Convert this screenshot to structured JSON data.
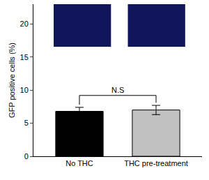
{
  "chart_data": {
    "type": "bar",
    "y_label": "GFP positive cells (%)",
    "categories": [
      "No THC",
      "THC pre-treatment"
    ],
    "values": [
      6.8,
      7.0
    ],
    "errors": [
      0.6,
      0.7
    ],
    "colors": [
      "#000000",
      "#c0c0c0"
    ],
    "ylim": [
      0,
      23
    ],
    "yticks": [
      0,
      5,
      10,
      15,
      20
    ],
    "grid": false,
    "annotations": [
      {
        "text": "N.S",
        "categories": [
          "No THC",
          "THC pre-treatment"
        ]
      }
    ]
  }
}
